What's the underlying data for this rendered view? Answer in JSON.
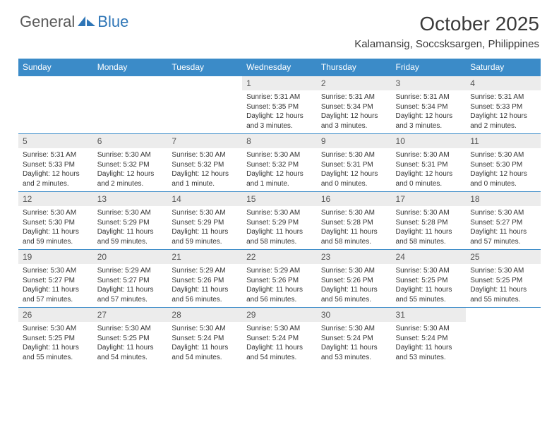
{
  "logo": {
    "text_gray": "General",
    "text_blue": "Blue"
  },
  "title": "October 2025",
  "location": "Kalamansig, Soccsksargen, Philippines",
  "colors": {
    "header_bg": "#3b8bc8",
    "header_fg": "#ffffff",
    "daynum_bg": "#ececec",
    "rule": "#3b8bc8",
    "logo_gray": "#5a5a5a",
    "logo_blue": "#2e75b6"
  },
  "typography": {
    "month_title_pt": 28,
    "location_pt": 15,
    "weekday_pt": 12,
    "daynum_pt": 12,
    "body_pt": 10
  },
  "weekdays": [
    "Sunday",
    "Monday",
    "Tuesday",
    "Wednesday",
    "Thursday",
    "Friday",
    "Saturday"
  ],
  "weeks": [
    [
      {
        "empty": true
      },
      {
        "empty": true
      },
      {
        "empty": true
      },
      {
        "n": "1",
        "sunrise": "Sunrise: 5:31 AM",
        "sunset": "Sunset: 5:35 PM",
        "daylight": "Daylight: 12 hours and 3 minutes."
      },
      {
        "n": "2",
        "sunrise": "Sunrise: 5:31 AM",
        "sunset": "Sunset: 5:34 PM",
        "daylight": "Daylight: 12 hours and 3 minutes."
      },
      {
        "n": "3",
        "sunrise": "Sunrise: 5:31 AM",
        "sunset": "Sunset: 5:34 PM",
        "daylight": "Daylight: 12 hours and 3 minutes."
      },
      {
        "n": "4",
        "sunrise": "Sunrise: 5:31 AM",
        "sunset": "Sunset: 5:33 PM",
        "daylight": "Daylight: 12 hours and 2 minutes."
      }
    ],
    [
      {
        "n": "5",
        "sunrise": "Sunrise: 5:31 AM",
        "sunset": "Sunset: 5:33 PM",
        "daylight": "Daylight: 12 hours and 2 minutes."
      },
      {
        "n": "6",
        "sunrise": "Sunrise: 5:30 AM",
        "sunset": "Sunset: 5:32 PM",
        "daylight": "Daylight: 12 hours and 2 minutes."
      },
      {
        "n": "7",
        "sunrise": "Sunrise: 5:30 AM",
        "sunset": "Sunset: 5:32 PM",
        "daylight": "Daylight: 12 hours and 1 minute."
      },
      {
        "n": "8",
        "sunrise": "Sunrise: 5:30 AM",
        "sunset": "Sunset: 5:32 PM",
        "daylight": "Daylight: 12 hours and 1 minute."
      },
      {
        "n": "9",
        "sunrise": "Sunrise: 5:30 AM",
        "sunset": "Sunset: 5:31 PM",
        "daylight": "Daylight: 12 hours and 0 minutes."
      },
      {
        "n": "10",
        "sunrise": "Sunrise: 5:30 AM",
        "sunset": "Sunset: 5:31 PM",
        "daylight": "Daylight: 12 hours and 0 minutes."
      },
      {
        "n": "11",
        "sunrise": "Sunrise: 5:30 AM",
        "sunset": "Sunset: 5:30 PM",
        "daylight": "Daylight: 12 hours and 0 minutes."
      }
    ],
    [
      {
        "n": "12",
        "sunrise": "Sunrise: 5:30 AM",
        "sunset": "Sunset: 5:30 PM",
        "daylight": "Daylight: 11 hours and 59 minutes."
      },
      {
        "n": "13",
        "sunrise": "Sunrise: 5:30 AM",
        "sunset": "Sunset: 5:29 PM",
        "daylight": "Daylight: 11 hours and 59 minutes."
      },
      {
        "n": "14",
        "sunrise": "Sunrise: 5:30 AM",
        "sunset": "Sunset: 5:29 PM",
        "daylight": "Daylight: 11 hours and 59 minutes."
      },
      {
        "n": "15",
        "sunrise": "Sunrise: 5:30 AM",
        "sunset": "Sunset: 5:29 PM",
        "daylight": "Daylight: 11 hours and 58 minutes."
      },
      {
        "n": "16",
        "sunrise": "Sunrise: 5:30 AM",
        "sunset": "Sunset: 5:28 PM",
        "daylight": "Daylight: 11 hours and 58 minutes."
      },
      {
        "n": "17",
        "sunrise": "Sunrise: 5:30 AM",
        "sunset": "Sunset: 5:28 PM",
        "daylight": "Daylight: 11 hours and 58 minutes."
      },
      {
        "n": "18",
        "sunrise": "Sunrise: 5:30 AM",
        "sunset": "Sunset: 5:27 PM",
        "daylight": "Daylight: 11 hours and 57 minutes."
      }
    ],
    [
      {
        "n": "19",
        "sunrise": "Sunrise: 5:30 AM",
        "sunset": "Sunset: 5:27 PM",
        "daylight": "Daylight: 11 hours and 57 minutes."
      },
      {
        "n": "20",
        "sunrise": "Sunrise: 5:29 AM",
        "sunset": "Sunset: 5:27 PM",
        "daylight": "Daylight: 11 hours and 57 minutes."
      },
      {
        "n": "21",
        "sunrise": "Sunrise: 5:29 AM",
        "sunset": "Sunset: 5:26 PM",
        "daylight": "Daylight: 11 hours and 56 minutes."
      },
      {
        "n": "22",
        "sunrise": "Sunrise: 5:29 AM",
        "sunset": "Sunset: 5:26 PM",
        "daylight": "Daylight: 11 hours and 56 minutes."
      },
      {
        "n": "23",
        "sunrise": "Sunrise: 5:30 AM",
        "sunset": "Sunset: 5:26 PM",
        "daylight": "Daylight: 11 hours and 56 minutes."
      },
      {
        "n": "24",
        "sunrise": "Sunrise: 5:30 AM",
        "sunset": "Sunset: 5:25 PM",
        "daylight": "Daylight: 11 hours and 55 minutes."
      },
      {
        "n": "25",
        "sunrise": "Sunrise: 5:30 AM",
        "sunset": "Sunset: 5:25 PM",
        "daylight": "Daylight: 11 hours and 55 minutes."
      }
    ],
    [
      {
        "n": "26",
        "sunrise": "Sunrise: 5:30 AM",
        "sunset": "Sunset: 5:25 PM",
        "daylight": "Daylight: 11 hours and 55 minutes."
      },
      {
        "n": "27",
        "sunrise": "Sunrise: 5:30 AM",
        "sunset": "Sunset: 5:25 PM",
        "daylight": "Daylight: 11 hours and 54 minutes."
      },
      {
        "n": "28",
        "sunrise": "Sunrise: 5:30 AM",
        "sunset": "Sunset: 5:24 PM",
        "daylight": "Daylight: 11 hours and 54 minutes."
      },
      {
        "n": "29",
        "sunrise": "Sunrise: 5:30 AM",
        "sunset": "Sunset: 5:24 PM",
        "daylight": "Daylight: 11 hours and 54 minutes."
      },
      {
        "n": "30",
        "sunrise": "Sunrise: 5:30 AM",
        "sunset": "Sunset: 5:24 PM",
        "daylight": "Daylight: 11 hours and 53 minutes."
      },
      {
        "n": "31",
        "sunrise": "Sunrise: 5:30 AM",
        "sunset": "Sunset: 5:24 PM",
        "daylight": "Daylight: 11 hours and 53 minutes."
      },
      {
        "empty": true
      }
    ]
  ]
}
